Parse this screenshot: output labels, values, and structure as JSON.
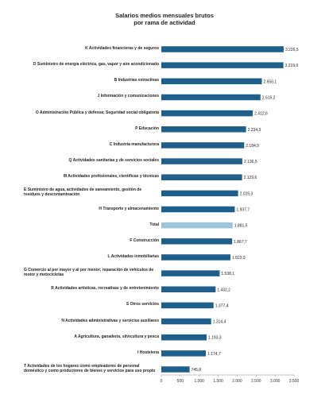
{
  "chart_data": {
    "type": "bar",
    "orientation": "horizontal",
    "title": [
      "Salarios medios mensuales brutos",
      "por rama de actividad"
    ],
    "categories": [
      "K  Actividades financieras y de seguros",
      "D  Suministro de energía eléctrica, gas, vapor y aire acondicionado",
      "B  Industrias extractivas",
      "J  Información y comunicaciones",
      "O  Administración Pública y defensa; Seguridad social obligatoria",
      "P  Educación",
      "C  Industria manufacturera",
      "Q  Actividades sanitarias y de servicios sociales",
      "M  Actividades profesionales, científicas y técnicas",
      "E  Suministro de agua, actividades de saneamiento, gestión de residuos y descontaminación",
      "H  Transporte y almacenamiento",
      "Total",
      "F  Construcción",
      "L  Actividades inmobiliarias",
      "G  Comercio al por mayor y al por menor; reparación de vehículos de motor y motocicletas",
      "R  Actividades artísticas, recreativas y de entretenimiento",
      "S  Otros servicios",
      "N  Actividades administrativas y servicios auxiliares",
      "A  Agricultura, ganadería, silvicultura y pesca",
      "I  Hostelería",
      "T  Actividades de los hogares como empleadores de personal doméstico y como productores de bienes y servicios para uso propio"
    ],
    "values": [
      3226.5,
      3219.0,
      2650.1,
      2615.2,
      2412.6,
      2234.3,
      2184.9,
      2136.5,
      2129.6,
      2025.3,
      1937.7,
      1881.5,
      1867.7,
      1823.9,
      1538.1,
      1432.2,
      1377.4,
      1314.4,
      1193.3,
      1174.7,
      745.8
    ],
    "value_labels": [
      "3.226,5",
      "3.219,0",
      "2.650,1",
      "2.615,2",
      "2.412,6",
      "2.234,3",
      "2.184,9",
      "2.136,5",
      "2.129,6",
      "2.025,3",
      "1.937,7",
      "1.881,5",
      "1.867,7",
      "1.823,9",
      "1.538,1",
      "1.432,2",
      "1.377,4",
      "1.314,4",
      "1.193,3",
      "1.174,7",
      "745,8"
    ],
    "colors": [
      "#1f5f8b",
      "#1f5f8b",
      "#1f5f8b",
      "#1f5f8b",
      "#1f5f8b",
      "#1f5f8b",
      "#1f5f8b",
      "#1f5f8b",
      "#1f5f8b",
      "#1f5f8b",
      "#1f5f8b",
      "#9cc3da",
      "#1f5f8b",
      "#1f5f8b",
      "#1f5f8b",
      "#1f5f8b",
      "#1f5f8b",
      "#1f5f8b",
      "#1f5f8b",
      "#1f5f8b",
      "#1f5f8b"
    ],
    "xlim": [
      0,
      3500
    ],
    "xticks": [
      0,
      500,
      {
        "value": 1000,
        "label": "1.000"
      },
      {
        "value": 1500,
        "label": "1.500"
      },
      {
        "value": 2000,
        "label": "2.000"
      },
      {
        "value": 2500,
        "label": "2.500"
      },
      {
        "value": 3000,
        "label": "3.000"
      },
      {
        "value": 3500,
        "label": "3.500"
      }
    ]
  }
}
